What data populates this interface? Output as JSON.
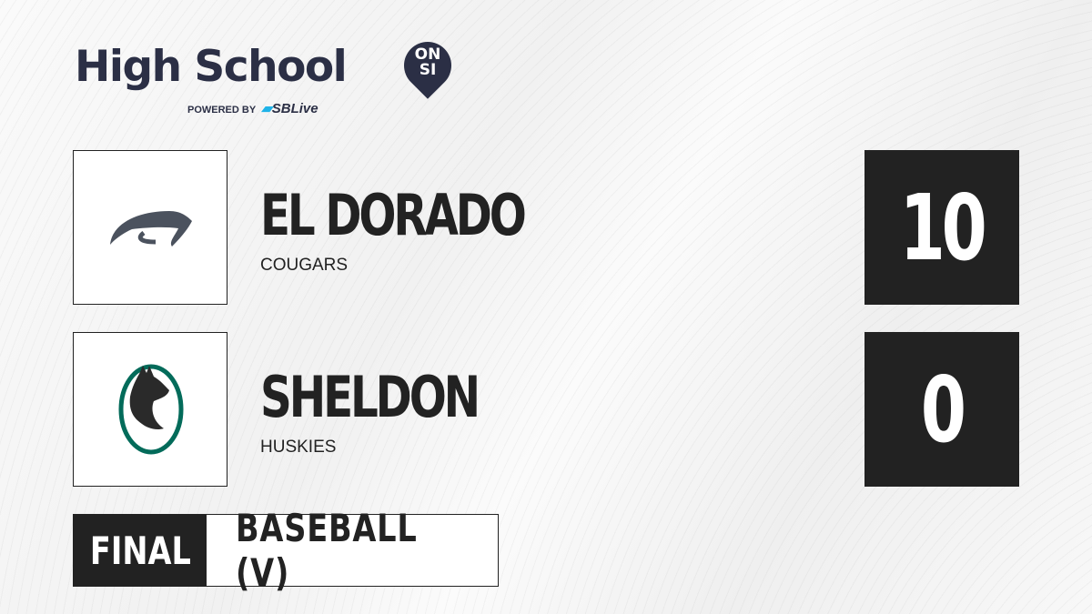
{
  "brand": {
    "title": "High School",
    "badge": "ON SI",
    "badge_line1": "ON",
    "badge_line2": "SI",
    "powered_by": "POWERED BY",
    "partner": "SBLive",
    "partner_s": "S",
    "partner_rest": "SBLive"
  },
  "teams": [
    {
      "name": "EL DORADO",
      "mascot": "COUGARS",
      "score": "10",
      "logo": "cougar-logo"
    },
    {
      "name": "SHELDON",
      "mascot": "HUSKIES",
      "score": "0",
      "logo": "husky-logo"
    }
  ],
  "game": {
    "status": "FINAL",
    "sport": "BASEBALL (V)"
  },
  "colors": {
    "dark": "#222222",
    "brand_navy": "#2b2f45",
    "accent_blue": "#1fb3e8",
    "husky_green": "#036b5a",
    "cougar_gray": "#4b525e"
  }
}
